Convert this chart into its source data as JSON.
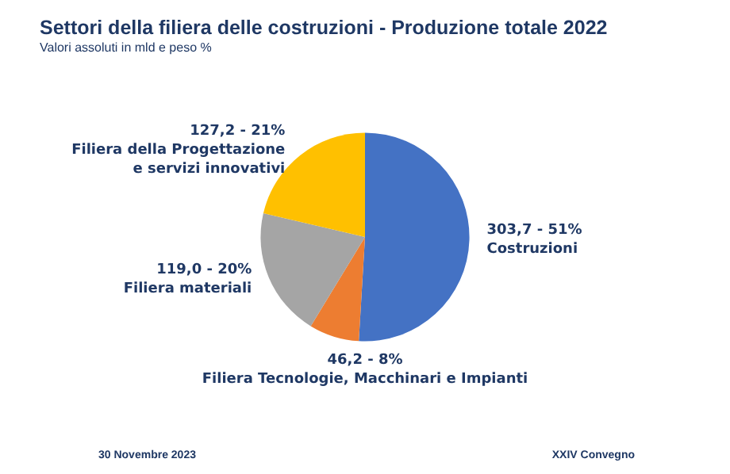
{
  "chart_data": {
    "type": "pie",
    "title": "Settori della filiera delle costruzioni - Produzione totale 2022",
    "subtitle": "Valori assoluti in mld e peso %",
    "categories": [
      "Costruzioni",
      "Filiera Tecnologie, Macchinari e Impianti",
      "Filiera materiali",
      "Filiera della Progettazione\ne servizi innovativi"
    ],
    "values": [
      303.7,
      46.2,
      119.0,
      127.2
    ],
    "value_labels": [
      "303,7 - 51%",
      "46,2 - 8%",
      "119,0 - 20%",
      "127,2 - 21%"
    ],
    "colors": [
      "#4472c4",
      "#ed7d31",
      "#a5a5a5",
      "#ffc000"
    ],
    "annotations": [
      "30 Novembre 2023",
      "XXIV Convegno"
    ],
    "legend": false
  }
}
